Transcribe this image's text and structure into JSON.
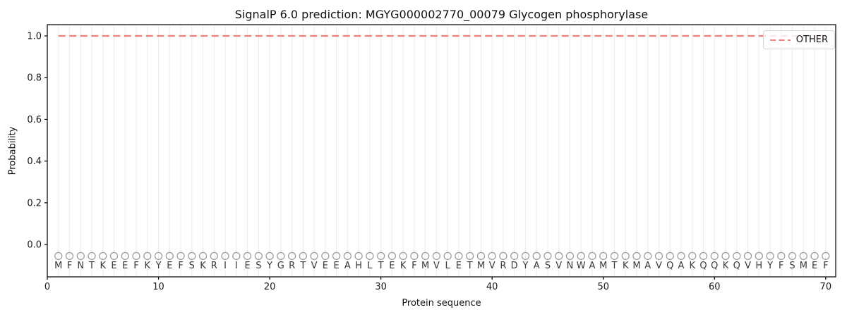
{
  "figure": {
    "title": "SignalP 6.0 prediction: MGYG000002770_00079 Glycogen phosphorylase",
    "xlabel": "Protein sequence",
    "ylabel": "Probability",
    "legend": {
      "position": "upper right",
      "entries": [
        {
          "label": "OTHER",
          "color": "#f08080",
          "style": "dashed"
        }
      ]
    }
  },
  "chart_data": {
    "type": "line",
    "title": "SignalP 6.0 prediction: MGYG000002770_00079 Glycogen phosphorylase",
    "xlabel": "Protein sequence",
    "ylabel": "Probability",
    "xlim": [
      0,
      70.9
    ],
    "ylim": [
      -0.155,
      1.054
    ],
    "xticks": [
      0,
      10,
      20,
      30,
      40,
      50,
      60,
      70
    ],
    "xtick_labels": [
      "0",
      "10",
      "20",
      "30",
      "40",
      "50",
      "60",
      "70"
    ],
    "yticks": [
      0.0,
      0.2,
      0.4,
      0.6,
      0.8,
      1.0
    ],
    "ytick_labels": [
      "0.0",
      "0.2",
      "0.4",
      "0.6",
      "0.8",
      "1.0"
    ],
    "grid": "vertical gridline at every residue position, no horizontal gridlines",
    "legend_position": "upper right",
    "series": [
      {
        "name": "OTHER",
        "color": "#f08080",
        "style": "dashed",
        "y": 1.0,
        "x_start": 1,
        "x_end": 70,
        "description": "constant probability 1.0 for residues 1 through 70"
      }
    ],
    "sequence": "MFNTKEEFKYEFSKRIIESYGRTVEEAHLTEKFMVLETMVRDYASVNWAMTKMAVQAKQQKQVHYFSMEF",
    "sequence_length": 70,
    "marker_y": -0.055,
    "letter_y": -0.1
  },
  "colors": {
    "background": "#ffffff",
    "grid": "#ececec",
    "frame": "#000000",
    "tick": "#000000",
    "marker": "#9e9e9e",
    "residue_letter": "#3a3a3a",
    "other_line": "#f08080"
  }
}
